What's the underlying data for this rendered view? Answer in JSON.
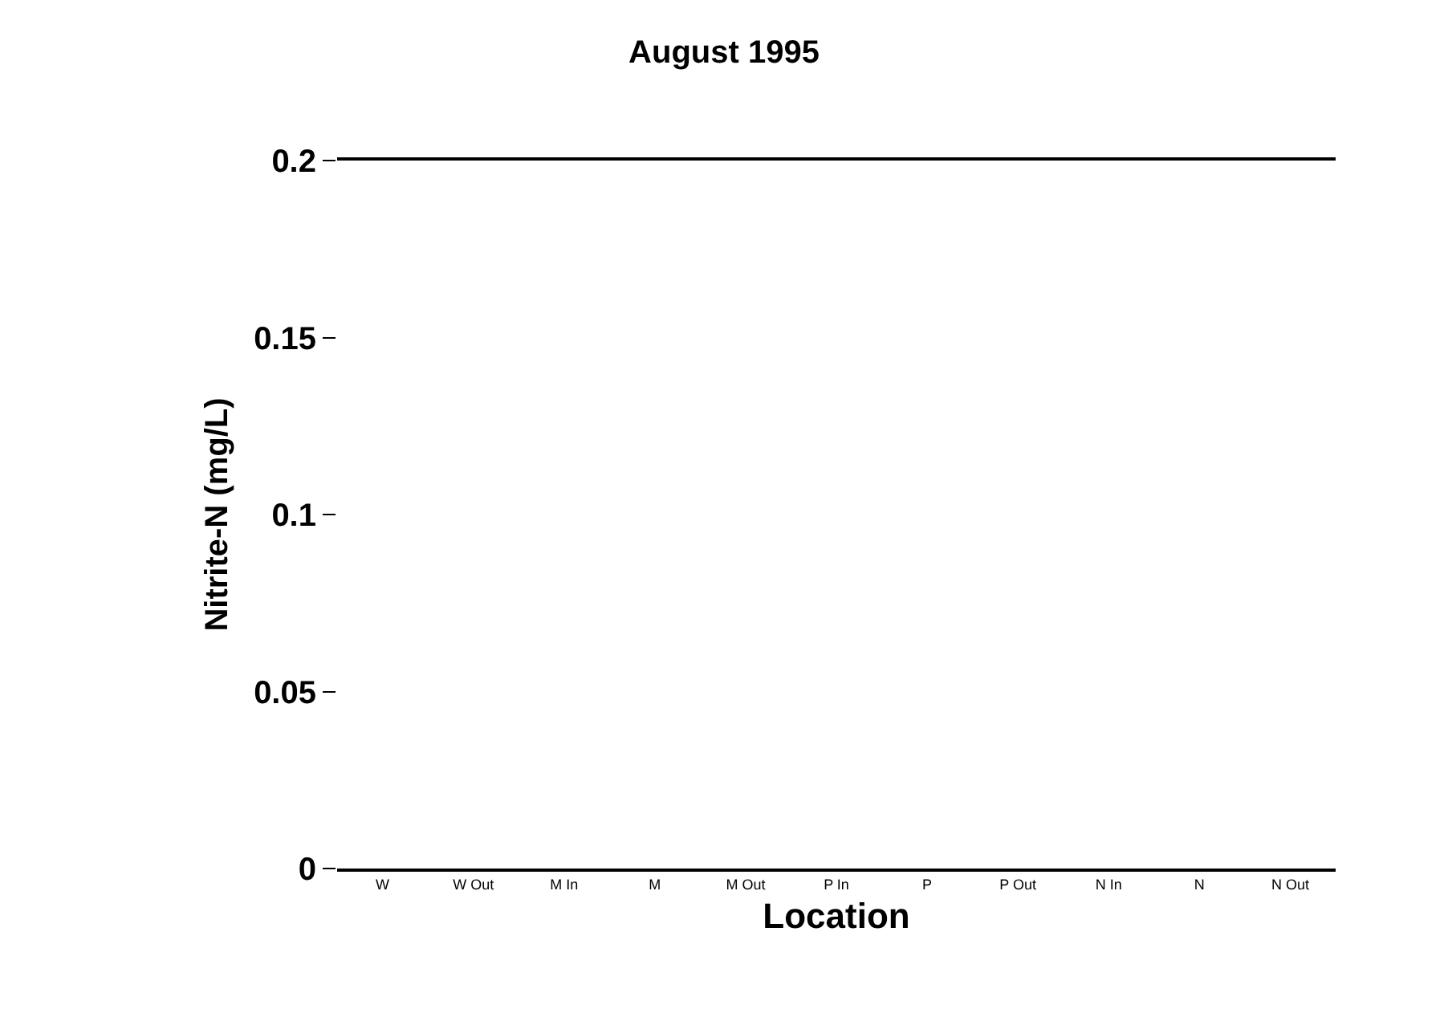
{
  "chart_data": {
    "type": "bar",
    "title": "August 1995",
    "xlabel": "Location",
    "ylabel": "Nitrite-N (mg/L)",
    "categories": [
      "W",
      "W Out",
      "M In",
      "M",
      "M Out",
      "P In",
      "P",
      "P Out",
      "N In",
      "N",
      "N Out"
    ],
    "values": [
      0,
      0,
      0,
      0,
      0,
      0,
      0,
      0,
      0,
      0,
      0
    ],
    "ylim": [
      0,
      0.2
    ],
    "yticks": [
      0,
      0.05,
      0.1,
      0.15,
      0.2
    ],
    "grid": false
  }
}
